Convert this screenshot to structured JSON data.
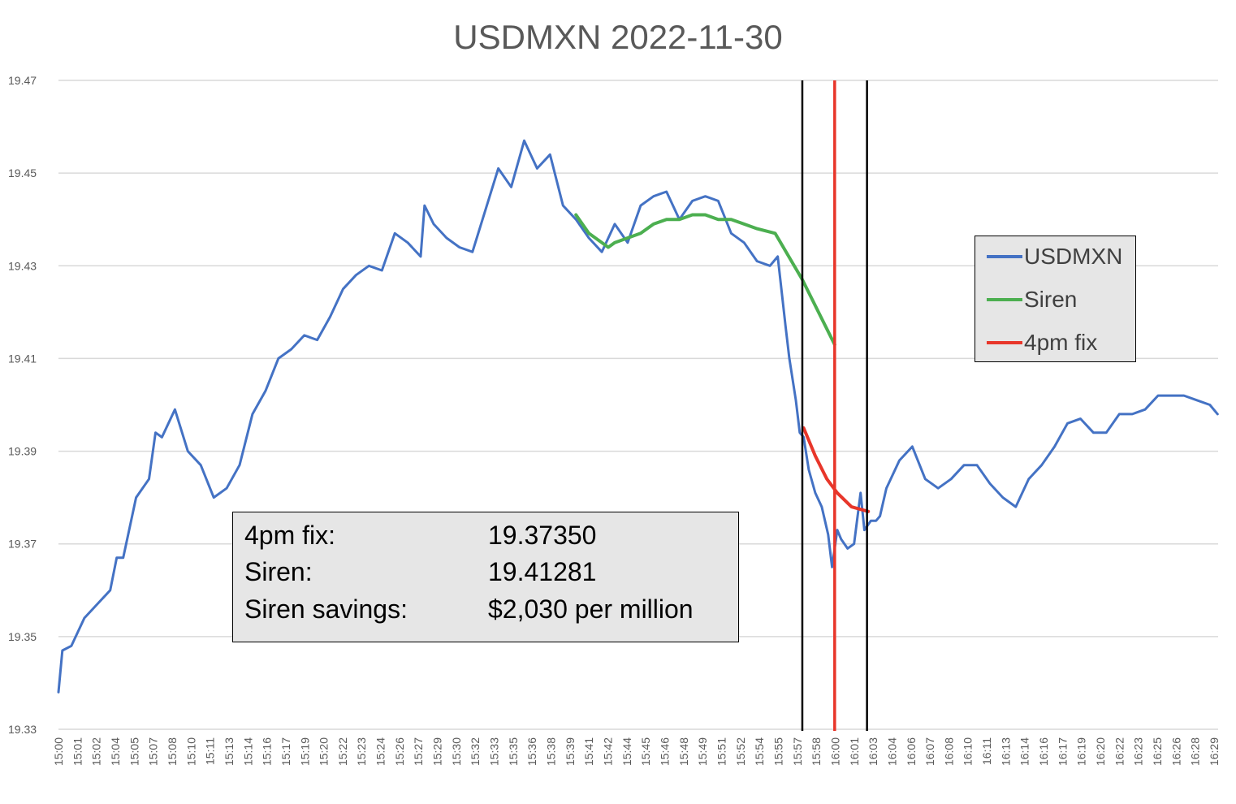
{
  "chart_data": {
    "type": "line",
    "title": "USDMXN 2022-11-30",
    "xlabel": "",
    "ylabel": "",
    "xlim": [
      "15:00",
      "16:30"
    ],
    "ylim": [
      19.33,
      19.47
    ],
    "yticks": [
      "19.33",
      "19.35",
      "19.37",
      "19.39",
      "19.41",
      "19.43",
      "19.45",
      "19.47"
    ],
    "xticks": [
      "15:00",
      "15:01",
      "15:02",
      "15:04",
      "15:05",
      "15:07",
      "15:08",
      "15:10",
      "15:11",
      "15:13",
      "15:14",
      "15:16",
      "15:17",
      "15:19",
      "15:20",
      "15:22",
      "15:23",
      "15:24",
      "15:26",
      "15:27",
      "15:29",
      "15:30",
      "15:32",
      "15:33",
      "15:35",
      "15:36",
      "15:38",
      "15:39",
      "15:41",
      "15:42",
      "15:44",
      "15:45",
      "15:46",
      "15:48",
      "15:49",
      "15:51",
      "15:52",
      "15:54",
      "15:55",
      "15:57",
      "15:58",
      "16:00",
      "16:01",
      "16:03",
      "16:04",
      "16:06",
      "16:07",
      "16:08",
      "16:10",
      "16:11",
      "16:13",
      "16:14",
      "16:16",
      "16:17",
      "16:19",
      "16:20",
      "16:22",
      "16:23",
      "16:25",
      "16:26",
      "16:28",
      "16:29"
    ],
    "grid": "horizontal",
    "legend_placement": "right",
    "series": [
      {
        "name": "USDMXN",
        "color": "#4472C4",
        "points": [
          [
            "15:00",
            19.338
          ],
          [
            "15:00:18",
            19.347
          ],
          [
            "15:01",
            19.348
          ],
          [
            "15:02",
            19.354
          ],
          [
            "15:03",
            19.357
          ],
          [
            "15:04",
            19.36
          ],
          [
            "15:04:30",
            19.367
          ],
          [
            "15:05",
            19.367
          ],
          [
            "15:06",
            19.38
          ],
          [
            "15:07",
            19.384
          ],
          [
            "15:07:30",
            19.394
          ],
          [
            "15:08",
            19.393
          ],
          [
            "15:09",
            19.399
          ],
          [
            "15:10",
            19.39
          ],
          [
            "15:11",
            19.387
          ],
          [
            "15:12",
            19.38
          ],
          [
            "15:13",
            19.382
          ],
          [
            "15:14",
            19.387
          ],
          [
            "15:15",
            19.398
          ],
          [
            "15:16",
            19.403
          ],
          [
            "15:17",
            19.41
          ],
          [
            "15:18",
            19.412
          ],
          [
            "15:19",
            19.415
          ],
          [
            "15:20",
            19.414
          ],
          [
            "15:21",
            19.419
          ],
          [
            "15:22",
            19.425
          ],
          [
            "15:23",
            19.428
          ],
          [
            "15:24",
            19.43
          ],
          [
            "15:25",
            19.429
          ],
          [
            "15:26",
            19.437
          ],
          [
            "15:27",
            19.435
          ],
          [
            "15:28",
            19.432
          ],
          [
            "15:28:18",
            19.443
          ],
          [
            "15:29",
            19.439
          ],
          [
            "15:30",
            19.436
          ],
          [
            "15:31",
            19.434
          ],
          [
            "15:32",
            19.433
          ],
          [
            "15:33",
            19.442
          ],
          [
            "15:34",
            19.451
          ],
          [
            "15:35",
            19.447
          ],
          [
            "15:36",
            19.457
          ],
          [
            "15:37",
            19.451
          ],
          [
            "15:38",
            19.454
          ],
          [
            "15:39",
            19.443
          ],
          [
            "15:40",
            19.44
          ],
          [
            "15:41",
            19.436
          ],
          [
            "15:42",
            19.433
          ],
          [
            "15:43",
            19.439
          ],
          [
            "15:44",
            19.435
          ],
          [
            "15:45",
            19.443
          ],
          [
            "15:46",
            19.445
          ],
          [
            "15:47",
            19.446
          ],
          [
            "15:48",
            19.44
          ],
          [
            "15:49",
            19.444
          ],
          [
            "15:50",
            19.445
          ],
          [
            "15:51",
            19.444
          ],
          [
            "15:52",
            19.437
          ],
          [
            "15:53",
            19.435
          ],
          [
            "15:54",
            19.431
          ],
          [
            "15:55",
            19.43
          ],
          [
            "15:55:36",
            19.432
          ],
          [
            "15:56:12",
            19.417
          ],
          [
            "15:56:30",
            19.41
          ],
          [
            "15:57",
            19.401
          ],
          [
            "15:57:18",
            19.394
          ],
          [
            "15:57:36",
            19.393
          ],
          [
            "15:58",
            19.386
          ],
          [
            "15:58:30",
            19.381
          ],
          [
            "15:59",
            19.378
          ],
          [
            "15:59:30",
            19.372
          ],
          [
            "15:59:48",
            19.365
          ],
          [
            "16:00:12",
            19.373
          ],
          [
            "16:00:30",
            19.371
          ],
          [
            "16:01",
            19.369
          ],
          [
            "16:01:30",
            19.37
          ],
          [
            "16:02",
            19.381
          ],
          [
            "16:02:18",
            19.373
          ],
          [
            "16:02:48",
            19.375
          ],
          [
            "16:03:12",
            19.375
          ],
          [
            "16:03:30",
            19.376
          ],
          [
            "16:04",
            19.382
          ],
          [
            "16:05",
            19.388
          ],
          [
            "16:06",
            19.391
          ],
          [
            "16:07",
            19.384
          ],
          [
            "16:08",
            19.382
          ],
          [
            "16:09",
            19.384
          ],
          [
            "16:10",
            19.387
          ],
          [
            "16:11",
            19.387
          ],
          [
            "16:12",
            19.383
          ],
          [
            "16:13",
            19.38
          ],
          [
            "16:14",
            19.378
          ],
          [
            "16:15",
            19.384
          ],
          [
            "16:16",
            19.387
          ],
          [
            "16:17",
            19.391
          ],
          [
            "16:18",
            19.396
          ],
          [
            "16:19",
            19.397
          ],
          [
            "16:20",
            19.394
          ],
          [
            "16:21",
            19.394
          ],
          [
            "16:22",
            19.398
          ],
          [
            "16:23",
            19.398
          ],
          [
            "16:24",
            19.399
          ],
          [
            "16:25",
            19.402
          ],
          [
            "16:26",
            19.402
          ],
          [
            "16:27",
            19.402
          ],
          [
            "16:28",
            19.401
          ],
          [
            "16:29",
            19.4
          ],
          [
            "16:29:36",
            19.398
          ]
        ]
      },
      {
        "name": "Siren",
        "color": "#4CAF50",
        "points": [
          [
            "15:40",
            19.441
          ],
          [
            "15:41",
            19.437
          ],
          [
            "15:42",
            19.435
          ],
          [
            "15:42:30",
            19.434
          ],
          [
            "15:43",
            19.435
          ],
          [
            "15:44",
            19.436
          ],
          [
            "15:45",
            19.437
          ],
          [
            "15:46",
            19.439
          ],
          [
            "15:47",
            19.44
          ],
          [
            "15:48",
            19.44
          ],
          [
            "15:49",
            19.441
          ],
          [
            "15:50",
            19.441
          ],
          [
            "15:51",
            19.44
          ],
          [
            "15:52",
            19.44
          ],
          [
            "15:53",
            19.439
          ],
          [
            "15:54",
            19.438
          ],
          [
            "15:55:24",
            19.437
          ],
          [
            "15:57:30",
            19.427
          ],
          [
            "16:00",
            19.413
          ]
        ]
      },
      {
        "name": "4pm fix",
        "color": "#E8362A",
        "points": [
          [
            "15:57:36",
            19.395
          ],
          [
            "15:58:30",
            19.389
          ],
          [
            "15:59:24",
            19.384
          ],
          [
            "16:00:12",
            19.381
          ],
          [
            "16:01:18",
            19.378
          ],
          [
            "16:02:36",
            19.377
          ]
        ]
      }
    ],
    "vertical_lines": [
      {
        "x": "15:57:30",
        "color": "#000000"
      },
      {
        "x": "16:00",
        "color": "#E8362A"
      },
      {
        "x": "16:02:30",
        "color": "#000000"
      }
    ],
    "annotation": {
      "rows": [
        {
          "label": "4pm fix:",
          "value": "19.37350"
        },
        {
          "label": "Siren:",
          "value": "19.41281"
        },
        {
          "label": "Siren savings:",
          "value": "$2,030 per million"
        }
      ]
    }
  }
}
